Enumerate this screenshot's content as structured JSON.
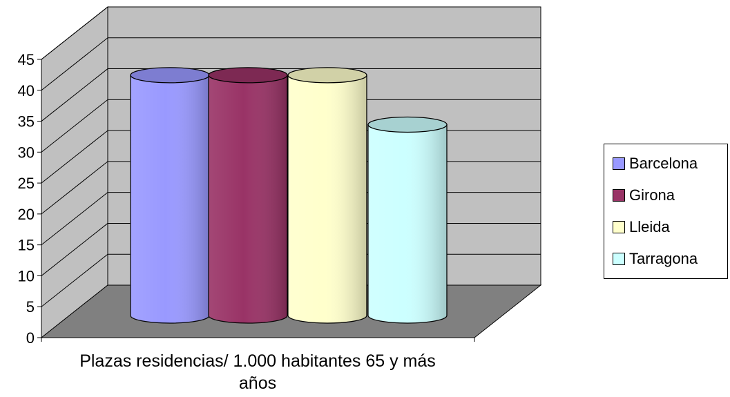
{
  "chart_data": {
    "type": "bar",
    "title": "",
    "xlabel": "",
    "ylabel": "",
    "categories": [
      "Plazas residencias/ 1.000 habitantes 65 y más años"
    ],
    "category_lines": [
      "Plazas residencias/ 1.000 habitantes 65 y más",
      "años"
    ],
    "series": [
      {
        "name": "Barcelona",
        "values": [
          42
        ],
        "color": "#9999ff"
      },
      {
        "name": "Girona",
        "values": [
          42
        ],
        "color": "#993366"
      },
      {
        "name": "Lleida",
        "values": [
          42
        ],
        "color": "#ffffcc"
      },
      {
        "name": "Tarragona",
        "values": [
          34
        ],
        "color": "#ccffff"
      }
    ],
    "ylim": [
      0,
      45
    ],
    "yticks": [
      "0",
      "5",
      "10",
      "15",
      "20",
      "25",
      "30",
      "35",
      "40",
      "45"
    ],
    "grid": true,
    "legend_position": "right",
    "wall_color": "#c0c0c0",
    "floor_color": "#808080"
  }
}
